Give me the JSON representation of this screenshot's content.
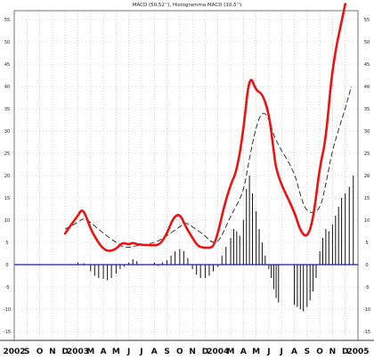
{
  "chart_data": {
    "type": "line",
    "title": "MACD (50,52’’), Histogramma MACD (10,5’’)",
    "xlabel": "",
    "ylabel": "",
    "ylim": [
      -17,
      57
    ],
    "y_ticks": [
      -15,
      -10,
      -5,
      0,
      5,
      10,
      15,
      20,
      25,
      30,
      35,
      40,
      45,
      50,
      55
    ],
    "x_tick_labels": [
      "2002",
      "S",
      "O",
      "N",
      "D",
      "2003",
      "M",
      "A",
      "M",
      "J",
      "J",
      "A",
      "S",
      "O",
      "N",
      "D",
      "2004",
      "M",
      "A",
      "M",
      "J",
      "J",
      "A",
      "S",
      "O",
      "N",
      "D",
      "2005"
    ],
    "grid": true,
    "zero_line": true,
    "colors": {
      "macd": "#ee1111",
      "signal": "#333333",
      "histogram": "#111111",
      "zero_line": "#1a1aa8",
      "grid": "#b4b4b4"
    },
    "series": [
      {
        "style": "solid-red",
        "points": [
          [
            "D",
            7
          ],
          [
            "D",
            9
          ],
          [
            "2003",
            11
          ],
          [
            "2003",
            12.5
          ],
          [
            "2003",
            11
          ],
          [
            "M",
            8
          ],
          [
            "M",
            5.5
          ],
          [
            "A",
            3.5
          ],
          [
            "A",
            3
          ],
          [
            "M",
            3.5
          ],
          [
            "M",
            5
          ],
          [
            "J",
            4.5
          ],
          [
            "J",
            5
          ],
          [
            "J",
            4.5
          ],
          [
            "A",
            4.3
          ],
          [
            "A",
            4.6
          ],
          [
            "S",
            7
          ],
          [
            "S",
            10.5
          ],
          [
            "O",
            11.5
          ],
          [
            "O",
            8.5
          ],
          [
            "N",
            6
          ],
          [
            "N",
            4
          ],
          [
            "D",
            3.8
          ],
          [
            "D",
            3.8
          ],
          [
            "D",
            4
          ],
          [
            "2004",
            7
          ],
          [
            "2004",
            13
          ],
          [
            "M",
            18
          ],
          [
            "M",
            21
          ],
          [
            "A",
            30
          ],
          [
            "A",
            43
          ],
          [
            "M",
            39
          ],
          [
            "M",
            38.5
          ],
          [
            "J",
            34
          ],
          [
            "J",
            27
          ],
          [
            "J",
            20
          ],
          [
            "A",
            12
          ],
          [
            "A",
            7.5
          ],
          [
            "S",
            6
          ],
          [
            "S",
            10
          ],
          [
            "O",
            22
          ],
          [
            "O",
            28
          ],
          [
            "N",
            45
          ],
          [
            "D",
            58.5
          ]
        ]
      },
      {
        "style": "dashed-black",
        "points": [
          [
            "D",
            8
          ],
          [
            "2003",
            9.5
          ],
          [
            "2003",
            10.5
          ],
          [
            "M",
            9.5
          ],
          [
            "A",
            7
          ],
          [
            "M",
            5
          ],
          [
            "M",
            4
          ],
          [
            "J",
            3.8
          ],
          [
            "J",
            4.2
          ],
          [
            "A",
            4.8
          ],
          [
            "S",
            6.5
          ],
          [
            "O",
            8.5
          ],
          [
            "O",
            9.5
          ],
          [
            "N",
            8.5
          ],
          [
            "D",
            6.5
          ],
          [
            "D",
            5
          ],
          [
            "2004",
            5
          ],
          [
            "2004",
            7.5
          ],
          [
            "M",
            11
          ],
          [
            "A",
            16
          ],
          [
            "A",
            24
          ],
          [
            "M",
            31
          ],
          [
            "M",
            34.5
          ],
          [
            "J",
            33
          ],
          [
            "J",
            28
          ],
          [
            "A",
            21
          ],
          [
            "A",
            15.5
          ],
          [
            "S",
            11.5
          ],
          [
            "O",
            12
          ],
          [
            "O",
            18
          ],
          [
            "N",
            26
          ],
          [
            "D",
            35
          ],
          [
            "D",
            40
          ]
        ]
      }
    ],
    "histogram": [
      [
        "2003",
        0.5
      ],
      [
        "2003",
        0.3
      ],
      [
        "M",
        -1.5
      ],
      [
        "M",
        -2.5
      ],
      [
        "M",
        -3
      ],
      [
        "A",
        -3.2
      ],
      [
        "A",
        -3.5
      ],
      [
        "A",
        -3
      ],
      [
        "M",
        -2
      ],
      [
        "M",
        -1
      ],
      [
        "M",
        -0.5
      ],
      [
        "J",
        0.5
      ],
      [
        "J",
        1.2
      ],
      [
        "J",
        0.8
      ],
      [
        "A",
        0.5
      ],
      [
        "A",
        -0.3
      ],
      [
        "A",
        0.5
      ],
      [
        "S",
        1
      ],
      [
        "S",
        2
      ],
      [
        "S",
        3
      ],
      [
        "O",
        3.5
      ],
      [
        "O",
        3
      ],
      [
        "O",
        1.5
      ],
      [
        "N",
        -1
      ],
      [
        "N",
        -2.2
      ],
      [
        "N",
        -3
      ],
      [
        "D",
        -3
      ],
      [
        "D",
        -2.5
      ],
      [
        "D",
        -1.5
      ],
      [
        "2004",
        -0.5
      ],
      [
        "2004",
        2
      ],
      [
        "2004",
        4
      ],
      [
        "M",
        6
      ],
      [
        "M",
        8
      ],
      [
        "M",
        7.5
      ],
      [
        "M",
        6.5
      ],
      [
        "A",
        10
      ],
      [
        "A",
        17
      ],
      [
        "A",
        20
      ],
      [
        "A",
        16
      ],
      [
        "M",
        12
      ],
      [
        "M",
        8
      ],
      [
        "M",
        5
      ],
      [
        "M",
        2
      ],
      [
        "J",
        -1
      ],
      [
        "J",
        -3
      ],
      [
        "J",
        -5.5
      ],
      [
        "J",
        -7.5
      ],
      [
        "J",
        -8.5
      ],
      [
        "A",
        -9
      ],
      [
        "A",
        -9.5
      ],
      [
        "A",
        -10
      ],
      [
        "A",
        -10.5
      ],
      [
        "S",
        -9.5
      ],
      [
        "S",
        -8
      ],
      [
        "S",
        -6
      ],
      [
        "S",
        -3
      ],
      [
        "O",
        3
      ],
      [
        "O",
        6
      ],
      [
        "O",
        8
      ],
      [
        "O",
        7.5
      ],
      [
        "N",
        9
      ],
      [
        "N",
        11
      ],
      [
        "N",
        13
      ],
      [
        "N",
        15
      ],
      [
        "D",
        16
      ],
      [
        "D",
        17.5
      ],
      [
        "D",
        20
      ]
    ]
  }
}
